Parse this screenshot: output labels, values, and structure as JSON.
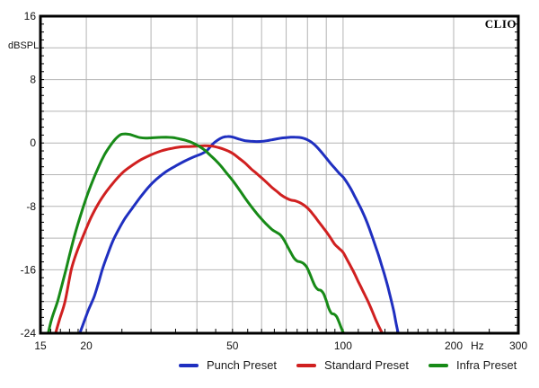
{
  "window": {
    "background": "#ffffff"
  },
  "header": {
    "brand": "CLIO"
  },
  "axes": {
    "y_unit_label": "dBSPL",
    "x_unit_label": "Hz"
  },
  "chart_data": {
    "type": "line",
    "title": "",
    "xlabel": "Hz",
    "ylabel": "dBSPL",
    "x_scale": "log",
    "xlim": [
      15,
      300
    ],
    "ylim": [
      -24,
      16
    ],
    "grid": true,
    "grid_color": "#b4b4b4",
    "border_color": "#000000",
    "tick_color": "#000000",
    "label_color": "#111111",
    "y_gridline_step": 4,
    "y_minor_tick_step": 1,
    "x_gridlines": [
      20,
      30,
      40,
      50,
      60,
      70,
      80,
      90,
      100,
      200
    ],
    "x_minor_ticks": [
      16,
      17,
      18,
      19,
      25,
      35,
      45,
      55,
      65,
      75,
      85,
      95,
      110,
      120,
      130,
      140,
      150,
      160,
      170,
      180,
      190,
      250
    ],
    "x_tick_labels": [
      {
        "f": 15,
        "label": "15"
      },
      {
        "f": 20,
        "label": "20"
      },
      {
        "f": 50,
        "label": "50"
      },
      {
        "f": 100,
        "label": "100"
      },
      {
        "f": 200,
        "label": "200"
      },
      {
        "f": 300,
        "label": "300"
      }
    ],
    "x_unit_anchor_f": 232,
    "y_tick_labels": [
      {
        "db": 16,
        "label": "16"
      },
      {
        "db": 8,
        "label": "8"
      },
      {
        "db": 0,
        "label": "0"
      },
      {
        "db": -8,
        "label": "-8"
      },
      {
        "db": -16,
        "label": "-16"
      },
      {
        "db": -24,
        "label": "-24"
      }
    ],
    "legend_position": "bottom",
    "series": [
      {
        "name": "Punch Preset",
        "color": "#1f2fc0",
        "points": [
          [
            19.2,
            -24
          ],
          [
            19.7,
            -22.6
          ],
          [
            20.3,
            -21
          ],
          [
            21,
            -19.4
          ],
          [
            21.6,
            -17.6
          ],
          [
            22.1,
            -16
          ],
          [
            22.8,
            -14.2
          ],
          [
            23.6,
            -12.4
          ],
          [
            24.5,
            -10.9
          ],
          [
            25.5,
            -9.5
          ],
          [
            26.7,
            -8.2
          ],
          [
            28,
            -6.9
          ],
          [
            29.5,
            -5.6
          ],
          [
            31,
            -4.6
          ],
          [
            33,
            -3.6
          ],
          [
            35,
            -2.9
          ],
          [
            37,
            -2.3
          ],
          [
            39,
            -1.8
          ],
          [
            41,
            -1.4
          ],
          [
            42.5,
            -1
          ],
          [
            44,
            -0.2
          ],
          [
            45.5,
            0.35
          ],
          [
            47,
            0.7
          ],
          [
            48.5,
            0.82
          ],
          [
            50,
            0.75
          ],
          [
            52,
            0.5
          ],
          [
            54,
            0.3
          ],
          [
            56,
            0.22
          ],
          [
            58,
            0.18
          ],
          [
            60,
            0.2
          ],
          [
            62,
            0.28
          ],
          [
            64,
            0.4
          ],
          [
            66,
            0.52
          ],
          [
            68,
            0.62
          ],
          [
            70,
            0.68
          ],
          [
            72,
            0.72
          ],
          [
            74,
            0.73
          ],
          [
            76,
            0.7
          ],
          [
            78,
            0.6
          ],
          [
            80,
            0.4
          ],
          [
            82,
            0.1
          ],
          [
            84,
            -0.3
          ],
          [
            86,
            -0.8
          ],
          [
            88,
            -1.35
          ],
          [
            90,
            -1.9
          ],
          [
            92.5,
            -2.6
          ],
          [
            95,
            -3.2
          ],
          [
            97.5,
            -3.8
          ],
          [
            100,
            -4.3
          ],
          [
            102.5,
            -5
          ],
          [
            105,
            -5.8
          ],
          [
            107.5,
            -6.7
          ],
          [
            110,
            -7.6
          ],
          [
            112.5,
            -8.5
          ],
          [
            115,
            -9.5
          ],
          [
            117.5,
            -10.6
          ],
          [
            120,
            -11.8
          ],
          [
            122.5,
            -13
          ],
          [
            125,
            -14.2
          ],
          [
            127.5,
            -15.5
          ],
          [
            130,
            -16.8
          ],
          [
            132.5,
            -18.2
          ],
          [
            135,
            -19.7
          ],
          [
            137.5,
            -21.3
          ],
          [
            139.5,
            -22.8
          ],
          [
            141.3,
            -24
          ]
        ]
      },
      {
        "name": "Standard Preset",
        "color": "#d02020",
        "points": [
          [
            16.5,
            -24
          ],
          [
            16.9,
            -22.3
          ],
          [
            17.5,
            -20
          ],
          [
            18.2,
            -16
          ],
          [
            18.9,
            -13.6
          ],
          [
            19.7,
            -11.5
          ],
          [
            20.6,
            -9.4
          ],
          [
            21.6,
            -7.6
          ],
          [
            22.7,
            -6.1
          ],
          [
            24,
            -4.7
          ],
          [
            25.3,
            -3.6
          ],
          [
            26.7,
            -2.8
          ],
          [
            28.2,
            -2.1
          ],
          [
            30,
            -1.5
          ],
          [
            32,
            -1
          ],
          [
            34,
            -0.7
          ],
          [
            36,
            -0.5
          ],
          [
            38,
            -0.45
          ],
          [
            40,
            -0.4
          ],
          [
            42,
            -0.35
          ],
          [
            44,
            -0.4
          ],
          [
            46,
            -0.6
          ],
          [
            48,
            -0.9
          ],
          [
            50,
            -1.3
          ],
          [
            52,
            -1.9
          ],
          [
            54,
            -2.5
          ],
          [
            56,
            -3.2
          ],
          [
            58,
            -3.8
          ],
          [
            60,
            -4.4
          ],
          [
            62,
            -5
          ],
          [
            64,
            -5.6
          ],
          [
            66,
            -6.1
          ],
          [
            68,
            -6.6
          ],
          [
            70,
            -6.95
          ],
          [
            72,
            -7.2
          ],
          [
            74,
            -7.3
          ],
          [
            76,
            -7.5
          ],
          [
            78,
            -7.8
          ],
          [
            80,
            -8.2
          ],
          [
            82,
            -8.75
          ],
          [
            84,
            -9.35
          ],
          [
            86,
            -10
          ],
          [
            88,
            -10.6
          ],
          [
            90,
            -11.2
          ],
          [
            92.5,
            -12
          ],
          [
            95,
            -12.8
          ],
          [
            97.5,
            -13.3
          ],
          [
            100,
            -13.8
          ],
          [
            102.5,
            -14.7
          ],
          [
            105,
            -15.6
          ],
          [
            107.5,
            -16.5
          ],
          [
            110,
            -17.5
          ],
          [
            112.5,
            -18.4
          ],
          [
            115,
            -19.3
          ],
          [
            117.5,
            -20.2
          ],
          [
            120,
            -21.2
          ],
          [
            122.5,
            -22.2
          ],
          [
            125,
            -23.1
          ],
          [
            127.8,
            -24
          ]
        ]
      },
      {
        "name": "Infra Preset",
        "color": "#178a17",
        "points": [
          [
            15.75,
            -24
          ],
          [
            16.1,
            -22.2
          ],
          [
            16.7,
            -20
          ],
          [
            17.15,
            -18
          ],
          [
            17.6,
            -16
          ],
          [
            18.1,
            -13.7
          ],
          [
            18.65,
            -11.4
          ],
          [
            19.3,
            -9.1
          ],
          [
            20,
            -6.9
          ],
          [
            20.8,
            -4.8
          ],
          [
            21.6,
            -3
          ],
          [
            22.4,
            -1.5
          ],
          [
            23.2,
            -0.4
          ],
          [
            24,
            0.5
          ],
          [
            24.8,
            1.05
          ],
          [
            25.6,
            1.15
          ],
          [
            26.4,
            1.05
          ],
          [
            27.2,
            0.85
          ],
          [
            28,
            0.68
          ],
          [
            29,
            0.62
          ],
          [
            30,
            0.65
          ],
          [
            31.5,
            0.7
          ],
          [
            33,
            0.72
          ],
          [
            34.5,
            0.68
          ],
          [
            36,
            0.5
          ],
          [
            37.5,
            0.3
          ],
          [
            39,
            0
          ],
          [
            40.5,
            -0.4
          ],
          [
            42,
            -0.9
          ],
          [
            43.5,
            -1.55
          ],
          [
            45,
            -2.2
          ],
          [
            46.5,
            -2.9
          ],
          [
            48,
            -3.7
          ],
          [
            50,
            -4.7
          ],
          [
            52,
            -5.8
          ],
          [
            54,
            -6.9
          ],
          [
            56,
            -7.9
          ],
          [
            58,
            -8.8
          ],
          [
            60,
            -9.6
          ],
          [
            62,
            -10.3
          ],
          [
            64,
            -10.9
          ],
          [
            66,
            -11.3
          ],
          [
            67.5,
            -11.6
          ],
          [
            69,
            -12.2
          ],
          [
            70.5,
            -13
          ],
          [
            72,
            -13.8
          ],
          [
            73.5,
            -14.5
          ],
          [
            75,
            -14.9
          ],
          [
            76.5,
            -15
          ],
          [
            78,
            -15.2
          ],
          [
            79.5,
            -15.6
          ],
          [
            81,
            -16.4
          ],
          [
            82.5,
            -17.3
          ],
          [
            84,
            -18.1
          ],
          [
            85.5,
            -18.5
          ],
          [
            87,
            -18.6
          ],
          [
            88.5,
            -19
          ],
          [
            90,
            -19.9
          ],
          [
            91.5,
            -20.9
          ],
          [
            93,
            -21.5
          ],
          [
            94.5,
            -21.6
          ],
          [
            96,
            -21.9
          ],
          [
            97.5,
            -22.6
          ],
          [
            99,
            -23.4
          ],
          [
            100.3,
            -24
          ]
        ]
      }
    ]
  }
}
